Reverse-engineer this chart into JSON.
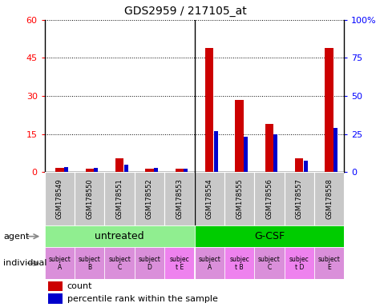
{
  "title": "GDS2959 / 217105_at",
  "samples": [
    "GSM178549",
    "GSM178550",
    "GSM178551",
    "GSM178552",
    "GSM178553",
    "GSM178554",
    "GSM178555",
    "GSM178556",
    "GSM178557",
    "GSM178558"
  ],
  "counts": [
    1.5,
    1.2,
    5.5,
    1.2,
    1.2,
    49,
    28.5,
    19,
    5.5,
    49
  ],
  "percentile_ranks": [
    3.0,
    2.5,
    4.5,
    2.5,
    2.0,
    27,
    23,
    25,
    7.5,
    29
  ],
  "ylim_left": [
    0,
    60
  ],
  "ylim_right": [
    0,
    100
  ],
  "yticks_left": [
    0,
    15,
    30,
    45,
    60
  ],
  "yticks_right": [
    0,
    25,
    50,
    75,
    100
  ],
  "ytick_labels_left": [
    "0",
    "15",
    "30",
    "45",
    "60"
  ],
  "ytick_labels_right": [
    "0",
    "25",
    "50",
    "75",
    "100%"
  ],
  "agent_groups": [
    {
      "label": "untreated",
      "start": 0,
      "end": 5,
      "color": "#90ee90"
    },
    {
      "label": "G-CSF",
      "start": 5,
      "end": 10,
      "color": "#00cc00"
    }
  ],
  "individual_labels": [
    "subject\nA",
    "subject\nB",
    "subject\nC",
    "subject\nD",
    "subjec\nt E",
    "subject\nA",
    "subjec\nt B",
    "subject\nC",
    "subjec\nt D",
    "subject\nE"
  ],
  "individual_colors": [
    "#da8fda",
    "#da8fda",
    "#da8fda",
    "#da8fda",
    "#ee82ee",
    "#da8fda",
    "#ee82ee",
    "#da8fda",
    "#ee82ee",
    "#da8fda"
  ],
  "bar_color_count": "#cc0000",
  "bar_color_pct": "#0000cc",
  "count_bar_width": 0.28,
  "pct_bar_width": 0.13,
  "legend_items": [
    {
      "label": "count",
      "color": "#cc0000"
    },
    {
      "label": "percentile rank within the sample",
      "color": "#0000cc"
    }
  ],
  "agent_label": "agent",
  "individual_label": "individual",
  "gsm_bg_color": "#c8c8c8",
  "untreated_color": "#90ee90",
  "gcsf_color": "#00cc00"
}
